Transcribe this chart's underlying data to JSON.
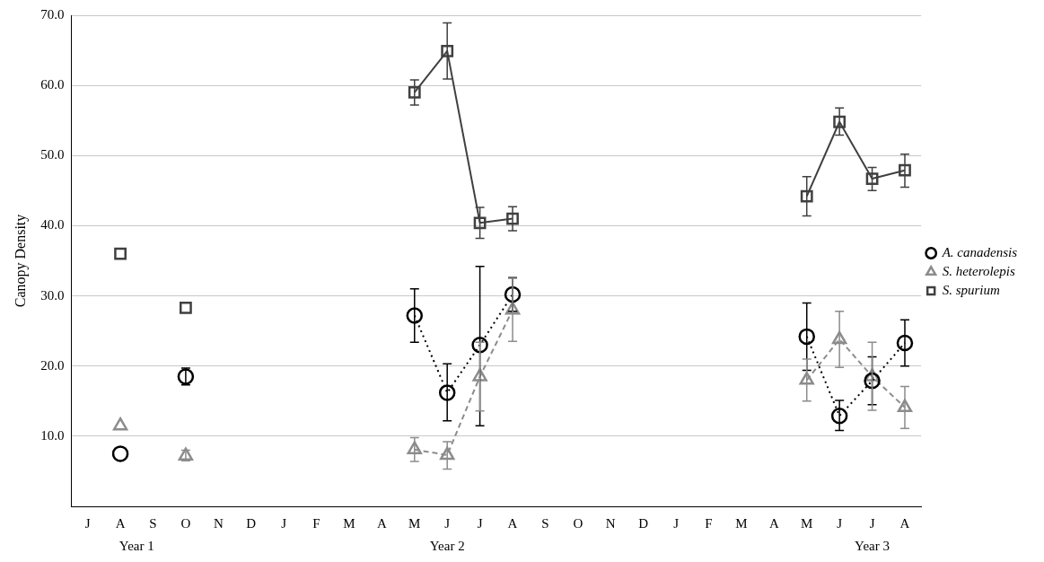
{
  "chart_data": {
    "type": "line",
    "ylabel": "Canopy Density",
    "categories": [
      "J",
      "A",
      "S",
      "O",
      "N",
      "D",
      "J",
      "F",
      "M",
      "A",
      "M",
      "J",
      "J",
      "A",
      "S",
      "O",
      "N",
      "D",
      "J",
      "F",
      "M",
      "A",
      "M",
      "J",
      "J",
      "A"
    ],
    "ylim": [
      0,
      70
    ],
    "yticks": [
      {
        "value": 0,
        "label": null
      },
      {
        "value": 10,
        "label": "10.0"
      },
      {
        "value": 20,
        "label": "20.0"
      },
      {
        "value": 30,
        "label": "30.0"
      },
      {
        "value": 40,
        "label": "40.0"
      },
      {
        "value": 50,
        "label": "50.0"
      },
      {
        "value": 60,
        "label": "60.0"
      },
      {
        "value": 70,
        "label": "70.0"
      }
    ],
    "grid": "y",
    "legend": "right",
    "annotations": [
      "Year 1",
      "Year 2",
      "Year 3"
    ],
    "series": [
      {
        "name": "A. canadensis",
        "color": "#000000",
        "marker": "circle",
        "line_style": "dotted",
        "values": [
          null,
          7.5,
          null,
          18.5,
          null,
          null,
          null,
          null,
          null,
          null,
          27.2,
          16.2,
          23,
          30.2,
          null,
          null,
          null,
          null,
          null,
          null,
          null,
          null,
          24.2,
          12.9,
          17.9,
          23.3
        ],
        "errors": [
          null,
          null,
          null,
          [
            17.3,
            19.7
          ],
          null,
          null,
          null,
          null,
          null,
          null,
          [
            23.4,
            31
          ],
          [
            12.2,
            20.3
          ],
          [
            11.5,
            34.2
          ],
          [
            27.8,
            32.6
          ],
          null,
          null,
          null,
          null,
          null,
          null,
          null,
          null,
          [
            19.4,
            29
          ],
          [
            10.8,
            15.1
          ],
          [
            14.5,
            21.3
          ],
          [
            20,
            26.6
          ]
        ]
      },
      {
        "name": "S. heterolepis",
        "color": "#8c8c8c",
        "marker": "triangle",
        "line_style": "dashed",
        "values": [
          null,
          11.5,
          null,
          7.2,
          null,
          null,
          null,
          null,
          null,
          null,
          8.1,
          7.3,
          18.5,
          28,
          null,
          null,
          null,
          null,
          null,
          null,
          null,
          null,
          18,
          23.8,
          18.5,
          14.1
        ],
        "errors": [
          null,
          null,
          null,
          [
            6.5,
            8
          ],
          null,
          null,
          null,
          null,
          null,
          null,
          [
            6.4,
            9.8
          ],
          [
            5.3,
            9.2
          ],
          [
            13.6,
            23.4
          ],
          [
            23.5,
            32.5
          ],
          null,
          null,
          null,
          null,
          null,
          null,
          null,
          null,
          [
            15,
            21
          ],
          [
            19.8,
            27.8
          ],
          [
            13.7,
            23.4
          ],
          [
            11.1,
            17.1
          ]
        ]
      },
      {
        "name": "S. spurium",
        "color": "#404040",
        "marker": "square",
        "line_style": "solid",
        "values": [
          null,
          36,
          null,
          28.3,
          null,
          null,
          null,
          null,
          null,
          null,
          59,
          64.9,
          40.4,
          41,
          null,
          null,
          null,
          null,
          null,
          null,
          null,
          null,
          44.2,
          54.8,
          46.7,
          47.9
        ],
        "errors": [
          null,
          null,
          null,
          null,
          null,
          null,
          null,
          null,
          null,
          null,
          [
            57.2,
            60.8
          ],
          [
            60.9,
            68.9
          ],
          [
            38.2,
            42.6
          ],
          [
            39.3,
            42.7
          ],
          null,
          null,
          null,
          null,
          null,
          null,
          null,
          null,
          [
            41.4,
            47
          ],
          [
            52.9,
            56.8
          ],
          [
            45,
            48.3
          ],
          [
            45.5,
            50.2
          ]
        ]
      }
    ]
  }
}
